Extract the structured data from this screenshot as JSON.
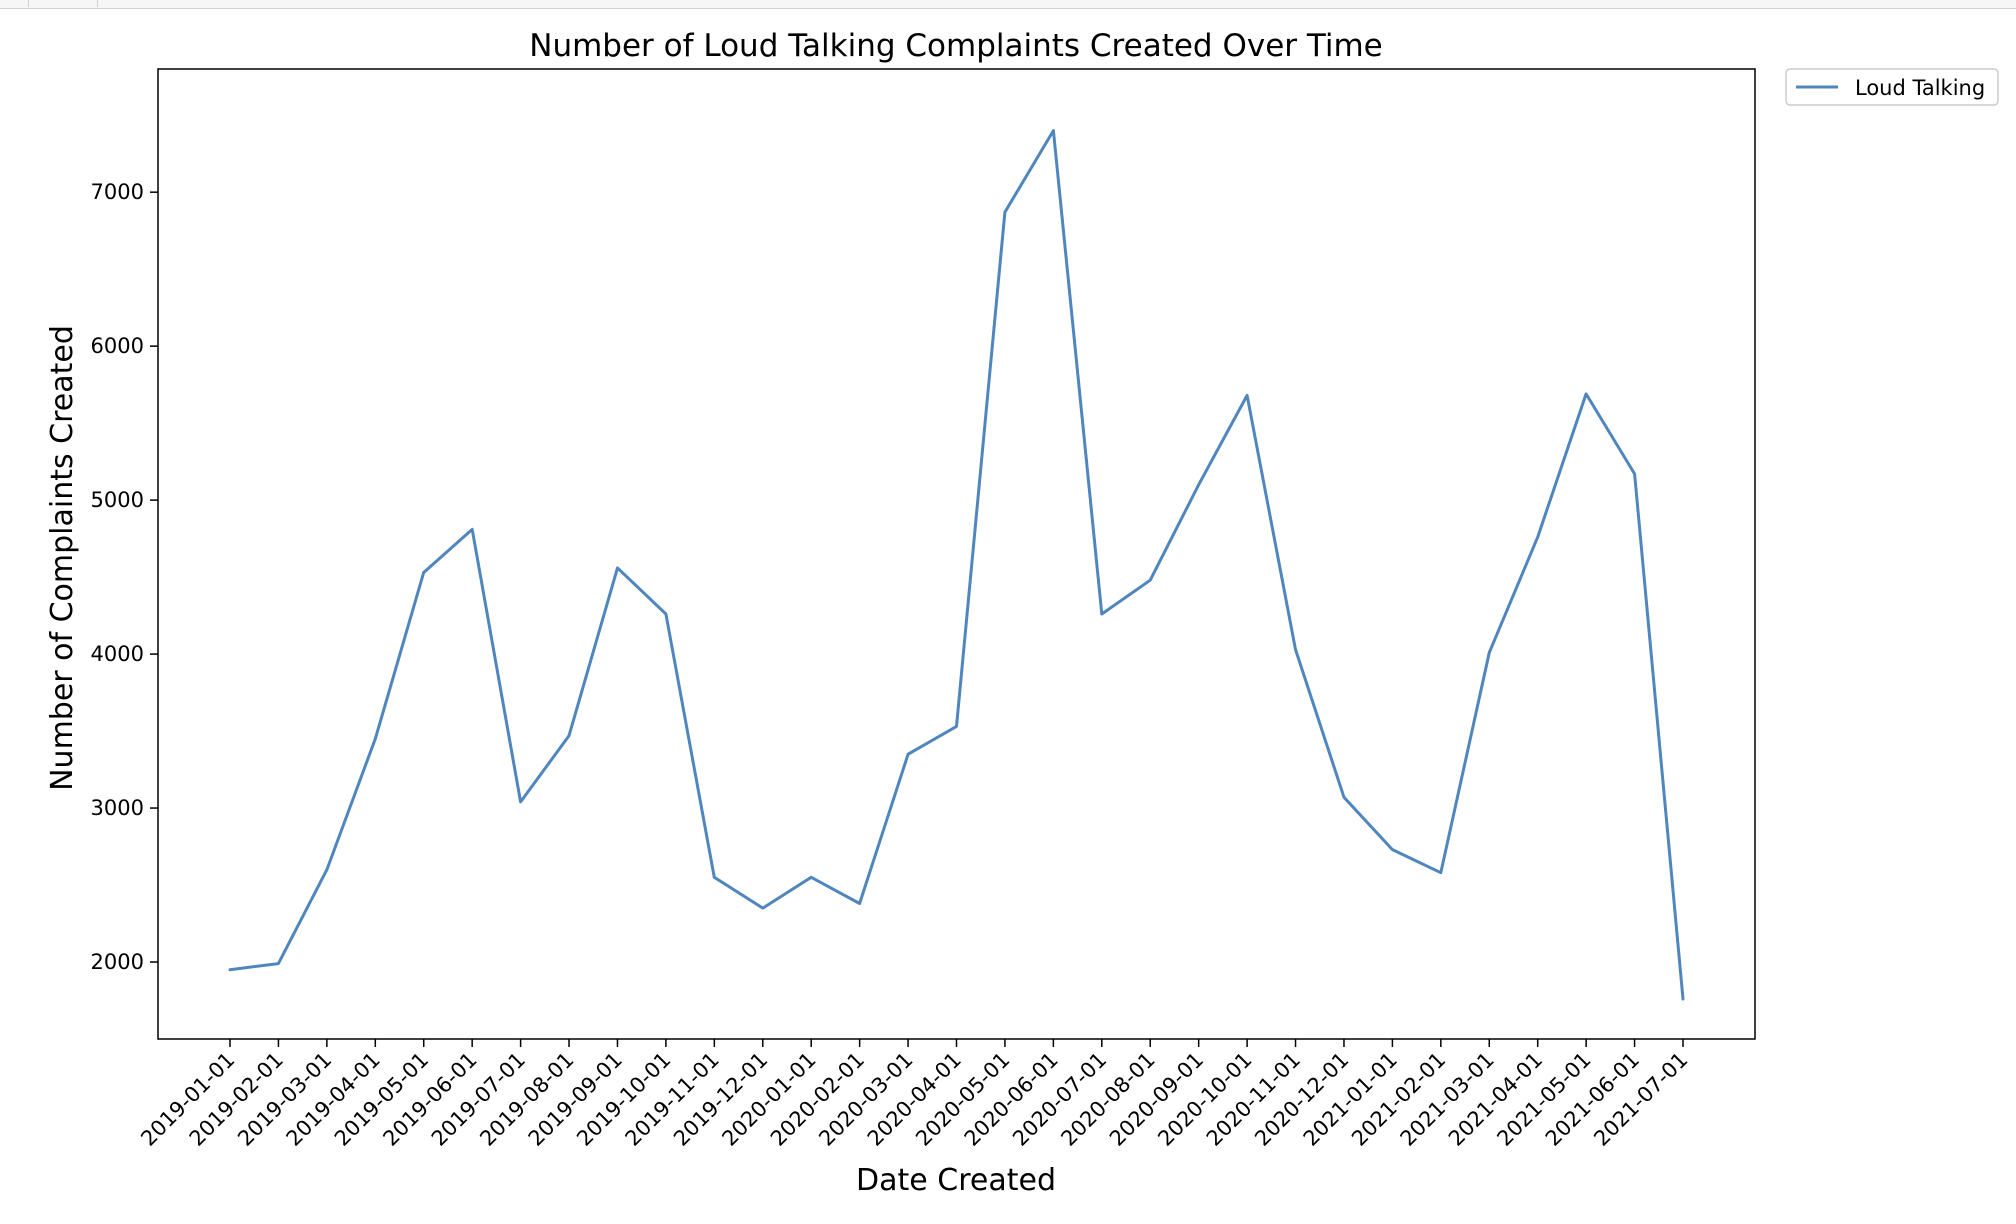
{
  "chart_data": {
    "type": "line",
    "title": "Number of Loud Talking Complaints Created Over Time",
    "xlabel": "Date Created",
    "ylabel": "Number of Complaints Created",
    "x": [
      "2019-01-01",
      "2019-02-01",
      "2019-03-01",
      "2019-04-01",
      "2019-05-01",
      "2019-06-01",
      "2019-07-01",
      "2019-08-01",
      "2019-09-01",
      "2019-10-01",
      "2019-11-01",
      "2019-12-01",
      "2020-01-01",
      "2020-02-01",
      "2020-03-01",
      "2020-04-01",
      "2020-05-01",
      "2020-06-01",
      "2020-07-01",
      "2020-08-01",
      "2020-09-01",
      "2020-10-01",
      "2020-11-01",
      "2020-12-01",
      "2021-01-01",
      "2021-02-01",
      "2021-03-01",
      "2021-04-01",
      "2021-05-01",
      "2021-06-01",
      "2021-07-01"
    ],
    "yticks": [
      2000,
      3000,
      4000,
      5000,
      6000,
      7000
    ],
    "ylim": [
      1500,
      7800
    ],
    "grid": false,
    "legend_position": "outside-top-right",
    "series": [
      {
        "name": "Loud Talking",
        "color": "#4f86bd",
        "values": [
          1950,
          1990,
          2600,
          3450,
          4530,
          4810,
          3040,
          3470,
          4560,
          4260,
          2550,
          2350,
          2550,
          2380,
          3350,
          3530,
          6870,
          7400,
          4260,
          4480,
          5100,
          5680,
          4030,
          3070,
          2730,
          2580,
          4010,
          4760,
          5690,
          5170,
          1760
        ]
      }
    ]
  }
}
